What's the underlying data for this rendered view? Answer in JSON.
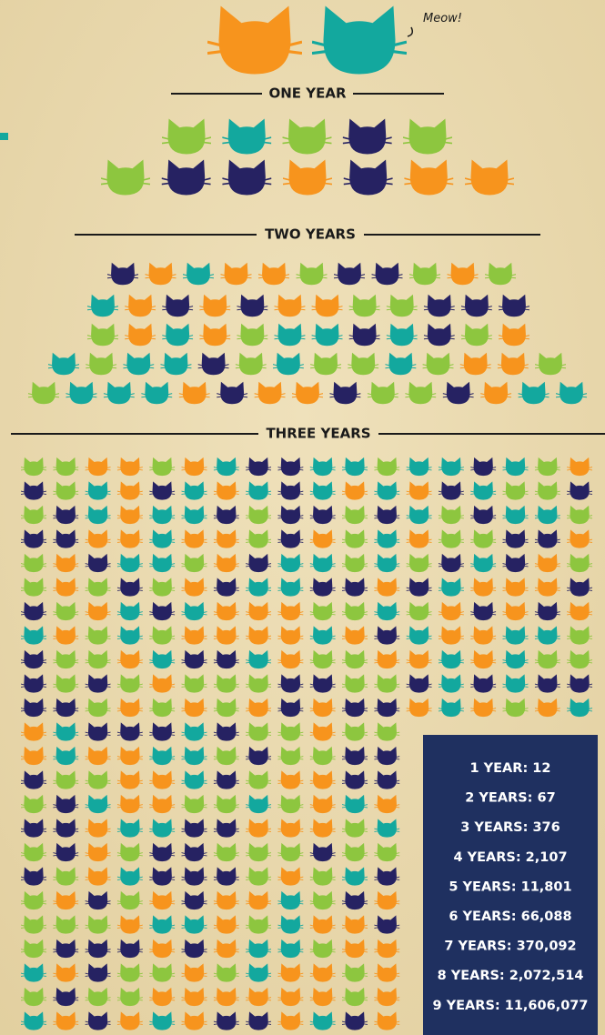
{
  "note_meow": "Meow!",
  "sections": [
    "ONE YEAR",
    "TWO YEARS",
    "THREE YEARS"
  ],
  "stats": [
    "1 YEAR: 12",
    "2 YEARS: 67",
    "3 YEARS: 376",
    "4 YEARS: 2,107",
    "5 YEARS: 11,801",
    "6 YEARS: 66,088",
    "7 YEARS: 370,092",
    "8 YEARS: 2,072,514",
    "9 YEARS: 11,606,077"
  ]
}
